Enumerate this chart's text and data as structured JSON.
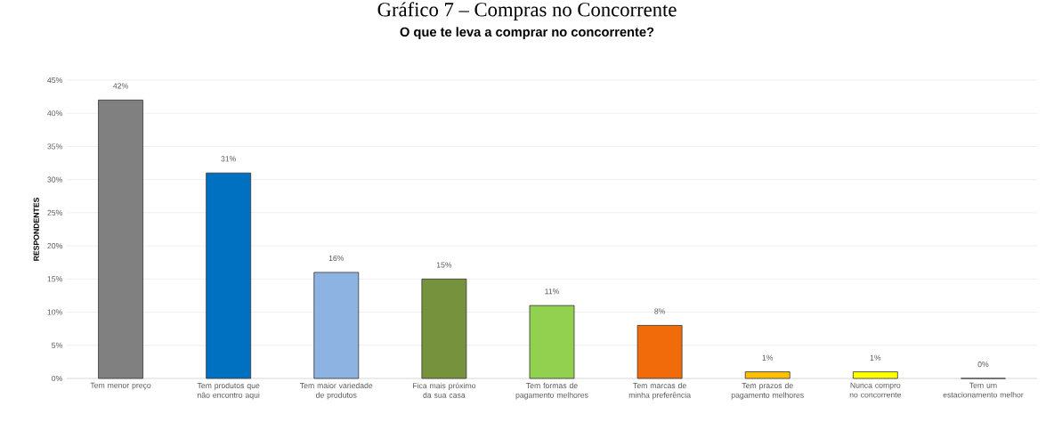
{
  "chart_data": {
    "type": "bar",
    "title": "Gráfico 7 – Compras no Concorrente",
    "subtitle": "O que te leva a comprar no concorrente?",
    "ylabel": "RESPONDENTES",
    "categories": [
      "Tem menor preço",
      "Tem produtos que não encontro aqui",
      "Tem maior variedade de produtos",
      "Fica mais próximo da sua casa",
      "Tem formas de pagamento melhores",
      "Tem marcas de minha preferência",
      "Tem prazos de pagamento melhores",
      "Nunca compro no concorrente",
      "Tem um estacionamento melhor"
    ],
    "values": [
      42,
      31,
      16,
      15,
      11,
      8,
      1,
      1,
      0
    ],
    "value_labels": [
      "42%",
      "31%",
      "16%",
      "15%",
      "11%",
      "8%",
      "1%",
      "1%",
      "0%"
    ],
    "colors": [
      "#808080",
      "#0070c0",
      "#8db3e2",
      "#76923c",
      "#92d050",
      "#f26b0a",
      "#ffc000",
      "#ffff00",
      "#d9d9d9"
    ],
    "ylim": [
      0,
      45
    ],
    "yticks": [
      {
        "value": 0,
        "label": "0%"
      },
      {
        "value": 5,
        "label": "5%"
      },
      {
        "value": 10,
        "label": "10%"
      },
      {
        "value": 15,
        "label": "15%"
      },
      {
        "value": 20,
        "label": "20%"
      },
      {
        "value": 25,
        "label": "25%"
      },
      {
        "value": 30,
        "label": "30%"
      },
      {
        "value": 35,
        "label": "35%"
      },
      {
        "value": 40,
        "label": "40%"
      },
      {
        "value": 45,
        "label": "45%"
      }
    ],
    "grid": "y"
  }
}
